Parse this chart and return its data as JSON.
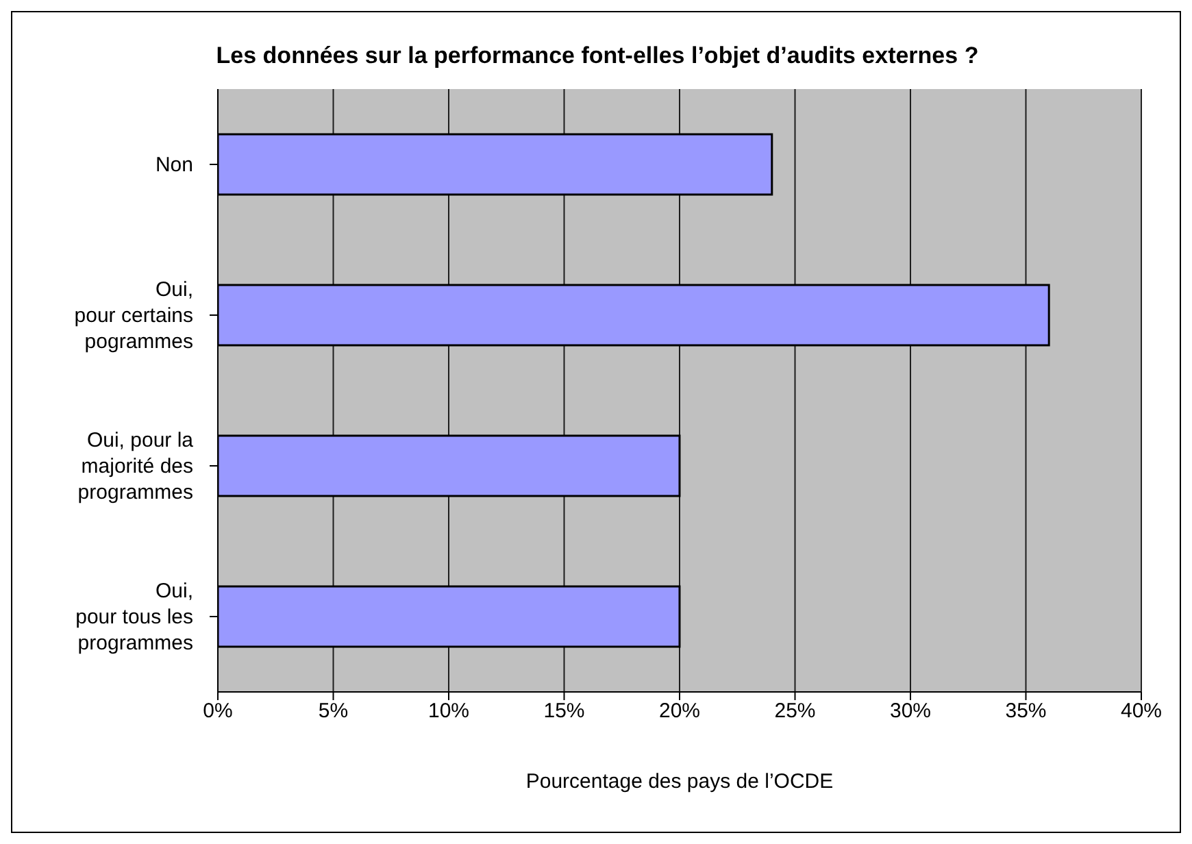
{
  "chart_data": {
    "type": "bar",
    "orientation": "horizontal",
    "title": "Les données sur la performance font-elles l’objet d’audits externes ?",
    "xlabel": "Pourcentage des pays de l’OCDE",
    "categories": [
      "Non",
      "Oui,\npour certains\npogrammes",
      "Oui, pour la\nmajorité des\nprogrammes",
      "Oui,\npour tous les\nprogrammes"
    ],
    "values": [
      24,
      36,
      20,
      20
    ],
    "color": "#9999ff",
    "xlim": [
      0,
      40
    ],
    "xticks": [
      {
        "value": 0,
        "label": "0%"
      },
      {
        "value": 5,
        "label": "5%"
      },
      {
        "value": 10,
        "label": "10%"
      },
      {
        "value": 15,
        "label": "15%"
      },
      {
        "value": 20,
        "label": "20%"
      },
      {
        "value": 25,
        "label": "25%"
      },
      {
        "value": 30,
        "label": "30%"
      },
      {
        "value": 35,
        "label": "35%"
      },
      {
        "value": 40,
        "label": "40%"
      }
    ],
    "grid": "x",
    "legend": false
  }
}
